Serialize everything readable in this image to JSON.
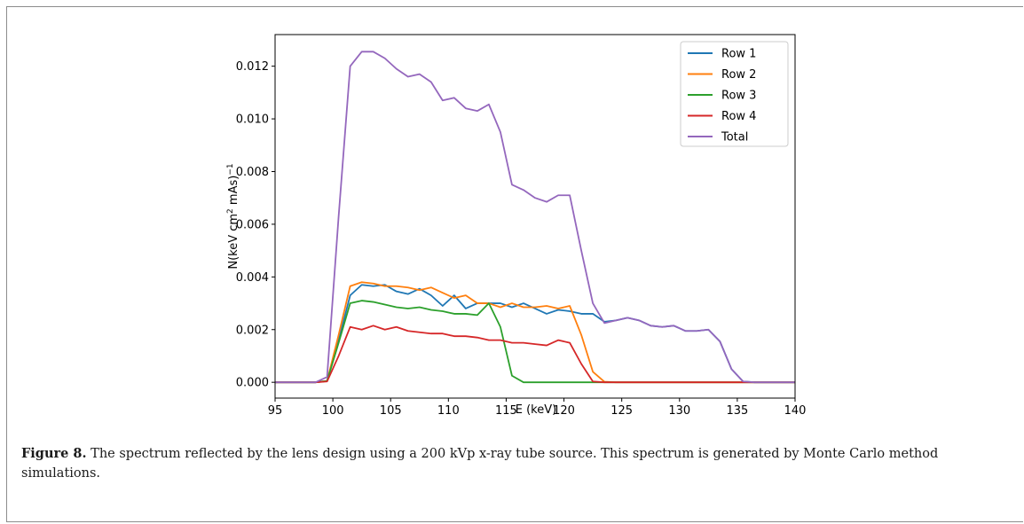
{
  "caption": {
    "label": "Figure 8.",
    "text": " The spectrum reflected by the lens design using a 200 kVp x-ray tube source. This spectrum is generated by Monte Carlo method simulations."
  },
  "chart_data": {
    "type": "line",
    "xlabel": "E (keV)",
    "ylabel_main": "N(keV cm",
    "ylabel_sup1": "2",
    "ylabel_mid": " mAs)",
    "ylabel_sup2": "−1",
    "xlim": [
      95,
      140
    ],
    "ylim": [
      -0.0006,
      0.0132
    ],
    "xticks": [
      95,
      100,
      105,
      110,
      115,
      120,
      125,
      130,
      135,
      140
    ],
    "xtick_labels": [
      "95",
      "100",
      "105",
      "110",
      "115",
      "120",
      "125",
      "130",
      "135",
      "140"
    ],
    "yticks": [
      0.0,
      0.002,
      0.004,
      0.006,
      0.008,
      0.01,
      0.012
    ],
    "ytick_labels": [
      "0.000",
      "0.002",
      "0.004",
      "0.006",
      "0.008",
      "0.010",
      "0.012"
    ],
    "grid": false,
    "legend_position": "top-right",
    "series": [
      {
        "name": "Row 1",
        "color": "#1f77b4",
        "points": [
          [
            95,
            0
          ],
          [
            98.5,
            0
          ],
          [
            99.5,
            5e-05
          ],
          [
            100.5,
            0.0016
          ],
          [
            101.5,
            0.0033
          ],
          [
            102.5,
            0.0037
          ],
          [
            103.5,
            0.00365
          ],
          [
            104.5,
            0.0037
          ],
          [
            105.5,
            0.00345
          ],
          [
            106.5,
            0.00335
          ],
          [
            107.5,
            0.00355
          ],
          [
            108.5,
            0.0033
          ],
          [
            109.5,
            0.0029
          ],
          [
            110.5,
            0.0033
          ],
          [
            111.5,
            0.0028
          ],
          [
            112.5,
            0.003
          ],
          [
            113.5,
            0.003
          ],
          [
            114.5,
            0.003
          ],
          [
            115.5,
            0.00285
          ],
          [
            116.5,
            0.003
          ],
          [
            117.5,
            0.0028
          ],
          [
            118.5,
            0.0026
          ],
          [
            119.5,
            0.00275
          ],
          [
            120.5,
            0.0027
          ],
          [
            121.5,
            0.0026
          ],
          [
            122.5,
            0.0026
          ],
          [
            123.5,
            0.0023
          ],
          [
            124.5,
            0.00235
          ],
          [
            125.5,
            0.00245
          ],
          [
            126.5,
            0.00235
          ],
          [
            127.5,
            0.00215
          ],
          [
            128.5,
            0.0021
          ],
          [
            129.5,
            0.00215
          ],
          [
            130.5,
            0.00195
          ],
          [
            131.5,
            0.00195
          ],
          [
            132.5,
            0.002
          ],
          [
            133.5,
            0.00155
          ],
          [
            134.5,
            0.0005
          ],
          [
            135.5,
            3e-05
          ],
          [
            136.5,
            0
          ],
          [
            140,
            0
          ]
        ]
      },
      {
        "name": "Row 2",
        "color": "#ff7f0e",
        "points": [
          [
            95,
            0
          ],
          [
            98.5,
            0
          ],
          [
            99.5,
            5e-05
          ],
          [
            100.5,
            0.0018
          ],
          [
            101.5,
            0.00365
          ],
          [
            102.5,
            0.0038
          ],
          [
            103.5,
            0.00375
          ],
          [
            104.5,
            0.00365
          ],
          [
            105.5,
            0.00365
          ],
          [
            106.5,
            0.0036
          ],
          [
            107.5,
            0.0035
          ],
          [
            108.5,
            0.0036
          ],
          [
            109.5,
            0.0034
          ],
          [
            110.5,
            0.0032
          ],
          [
            111.5,
            0.0033
          ],
          [
            112.5,
            0.003
          ],
          [
            113.5,
            0.003
          ],
          [
            114.5,
            0.00285
          ],
          [
            115.5,
            0.003
          ],
          [
            116.5,
            0.00285
          ],
          [
            117.5,
            0.00285
          ],
          [
            118.5,
            0.0029
          ],
          [
            119.5,
            0.0028
          ],
          [
            120.5,
            0.0029
          ],
          [
            121.5,
            0.0018
          ],
          [
            122.5,
            0.0004
          ],
          [
            123.5,
            2e-05
          ],
          [
            124.5,
            0
          ],
          [
            140,
            0
          ]
        ]
      },
      {
        "name": "Row 3",
        "color": "#2ca02c",
        "points": [
          [
            95,
            0
          ],
          [
            98.5,
            0
          ],
          [
            99.5,
            5e-05
          ],
          [
            100.5,
            0.0015
          ],
          [
            101.5,
            0.003
          ],
          [
            102.5,
            0.0031
          ],
          [
            103.5,
            0.00305
          ],
          [
            104.5,
            0.00295
          ],
          [
            105.5,
            0.00285
          ],
          [
            106.5,
            0.0028
          ],
          [
            107.5,
            0.00285
          ],
          [
            108.5,
            0.00275
          ],
          [
            109.5,
            0.0027
          ],
          [
            110.5,
            0.0026
          ],
          [
            111.5,
            0.0026
          ],
          [
            112.5,
            0.00255
          ],
          [
            113.5,
            0.003
          ],
          [
            114.5,
            0.0021
          ],
          [
            115.5,
            0.00025
          ],
          [
            116.5,
            0
          ],
          [
            140,
            0
          ]
        ]
      },
      {
        "name": "Row 4",
        "color": "#d62728",
        "points": [
          [
            95,
            0
          ],
          [
            98.5,
            0
          ],
          [
            99.5,
            3e-05
          ],
          [
            100.5,
            0.001
          ],
          [
            101.5,
            0.0021
          ],
          [
            102.5,
            0.002
          ],
          [
            103.5,
            0.00215
          ],
          [
            104.5,
            0.002
          ],
          [
            105.5,
            0.0021
          ],
          [
            106.5,
            0.00195
          ],
          [
            107.5,
            0.0019
          ],
          [
            108.5,
            0.00185
          ],
          [
            109.5,
            0.00185
          ],
          [
            110.5,
            0.00175
          ],
          [
            111.5,
            0.00175
          ],
          [
            112.5,
            0.0017
          ],
          [
            113.5,
            0.0016
          ],
          [
            114.5,
            0.0016
          ],
          [
            115.5,
            0.0015
          ],
          [
            116.5,
            0.0015
          ],
          [
            117.5,
            0.00145
          ],
          [
            118.5,
            0.0014
          ],
          [
            119.5,
            0.0016
          ],
          [
            120.5,
            0.0015
          ],
          [
            121.5,
            0.0007
          ],
          [
            122.5,
            3e-05
          ],
          [
            123.5,
            0
          ],
          [
            140,
            0
          ]
        ]
      },
      {
        "name": "Total",
        "color": "#9467bd",
        "points": [
          [
            95,
            0
          ],
          [
            98.5,
            0
          ],
          [
            99.5,
            0.0002
          ],
          [
            100.5,
            0.0063
          ],
          [
            101.5,
            0.012
          ],
          [
            102.5,
            0.01255
          ],
          [
            103.5,
            0.01255
          ],
          [
            104.5,
            0.0123
          ],
          [
            105.5,
            0.0119
          ],
          [
            106.5,
            0.0116
          ],
          [
            107.5,
            0.0117
          ],
          [
            108.5,
            0.0114
          ],
          [
            109.5,
            0.0107
          ],
          [
            110.5,
            0.0108
          ],
          [
            111.5,
            0.0104
          ],
          [
            112.5,
            0.0103
          ],
          [
            113.5,
            0.01055
          ],
          [
            114.5,
            0.0095
          ],
          [
            115.5,
            0.0075
          ],
          [
            116.5,
            0.0073
          ],
          [
            117.5,
            0.007
          ],
          [
            118.5,
            0.00685
          ],
          [
            119.5,
            0.0071
          ],
          [
            120.5,
            0.0071
          ],
          [
            121.5,
            0.005
          ],
          [
            122.5,
            0.003
          ],
          [
            123.5,
            0.00225
          ],
          [
            124.5,
            0.00235
          ],
          [
            125.5,
            0.00245
          ],
          [
            126.5,
            0.00235
          ],
          [
            127.5,
            0.00215
          ],
          [
            128.5,
            0.0021
          ],
          [
            129.5,
            0.00215
          ],
          [
            130.5,
            0.00195
          ],
          [
            131.5,
            0.00195
          ],
          [
            132.5,
            0.002
          ],
          [
            133.5,
            0.00155
          ],
          [
            134.5,
            0.0005
          ],
          [
            135.5,
            3e-05
          ],
          [
            136.5,
            0
          ],
          [
            140,
            0
          ]
        ]
      }
    ]
  }
}
